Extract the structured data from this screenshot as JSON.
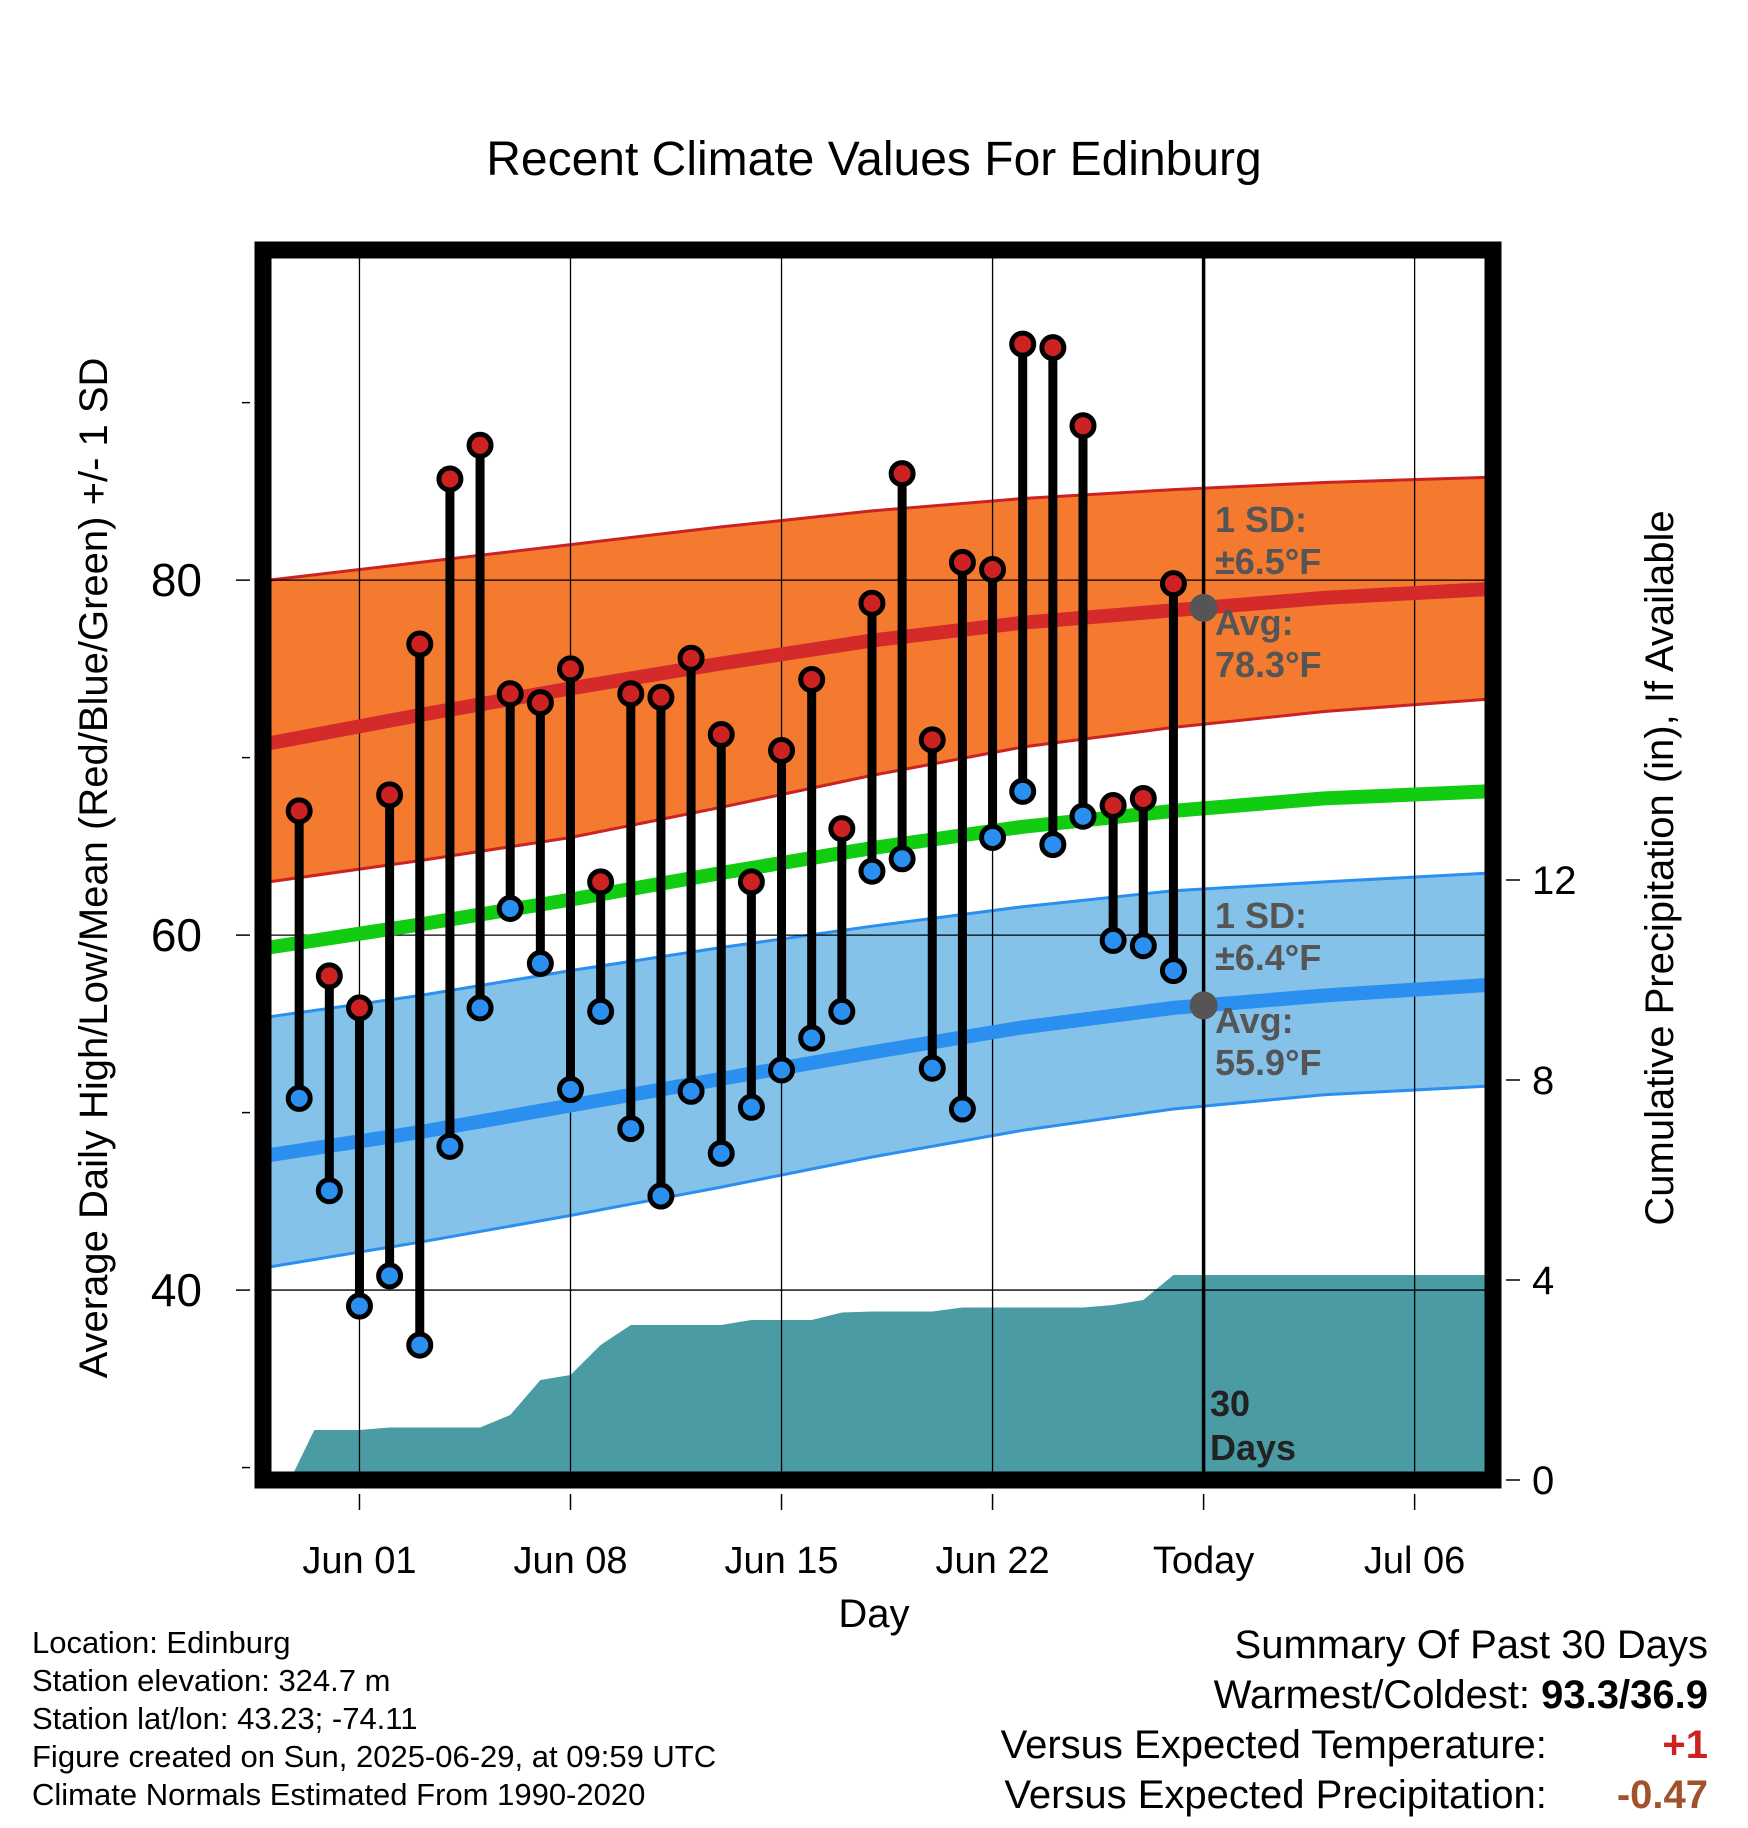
{
  "title": "Recent Climate Values For Edinburg",
  "xlabel": "Day",
  "ylabel_left": "Average Daily High/Low/Mean (Red/Blue/Green) +/- 1 SD",
  "ylabel_right": "Cumulative Precipitation (in), If Available",
  "annotations": {
    "high_sd_line1": "1 SD:",
    "high_sd_line2": "±6.5°F",
    "high_avg_line1": "Avg:",
    "high_avg_line2": "78.3°F",
    "low_sd_line1": "1 SD:",
    "low_sd_line2": "±6.4°F",
    "low_avg_line1": "Avg:",
    "low_avg_line2": "55.9°F",
    "window_line1": "30",
    "window_line2": "Days"
  },
  "info_left": [
    "Location: Edinburg",
    "Station elevation: 324.7 m",
    "Station lat/lon: 43.23; -74.11",
    "Figure created on Sun, 2025-06-29, at 09:59 UTC",
    "Climate Normals Estimated From 1990-2020"
  ],
  "summary": {
    "heading": "Summary Of Past 30 Days",
    "warm_cold_label": "Warmest/Coldest:",
    "warm_cold_value": "93.3/36.9",
    "temp_label": "Versus Expected Temperature:",
    "temp_value": "+1",
    "precip_label": "Versus Expected Precipitation:",
    "precip_value": "-0.47"
  },
  "colors": {
    "high_marker": "#cc2222",
    "low_marker": "#2a8fef",
    "high_band": "#f47a30",
    "low_band": "#84c2ea",
    "mean_line": "#11cc11",
    "precip_fill": "#4a9ba4",
    "annotation_text": "#555555",
    "temp_value": "#cc2222",
    "precip_value": "#a0522d"
  },
  "chart_data": {
    "type": "line",
    "x_ticks": [
      {
        "day": 2,
        "label": "Jun 01"
      },
      {
        "day": 9,
        "label": "Jun 08"
      },
      {
        "day": 16,
        "label": "Jun 15"
      },
      {
        "day": 23,
        "label": "Jun 22"
      },
      {
        "day": 30,
        "label": "Today"
      },
      {
        "day": 37,
        "label": "Jul 06"
      }
    ],
    "xlim": [
      -1.2,
      39.6
    ],
    "today_day": 30,
    "y_left_ticks": [
      40,
      60,
      80
    ],
    "ylim_left": [
      29.3,
      98.6
    ],
    "y_right_ticks": [
      0,
      4,
      8,
      12
    ],
    "ylim_right": [
      0,
      24.6
    ],
    "normals": {
      "days": [
        -1,
        4,
        9,
        14,
        19,
        24,
        29,
        34,
        39.5
      ],
      "high_mean": [
        70.8,
        72.4,
        73.9,
        75.3,
        76.6,
        77.6,
        78.3,
        79.0,
        79.5
      ],
      "high_upper": [
        80.0,
        81.0,
        82.0,
        83.0,
        83.9,
        84.6,
        85.1,
        85.5,
        85.8
      ],
      "high_lower": [
        63.0,
        64.2,
        65.5,
        67.2,
        69.0,
        70.6,
        71.7,
        72.6,
        73.3
      ],
      "mean": [
        59.3,
        60.6,
        62.0,
        63.5,
        64.9,
        66.1,
        67.0,
        67.7,
        68.1
      ],
      "low_mean": [
        47.6,
        48.9,
        50.4,
        51.9,
        53.4,
        54.8,
        55.9,
        56.6,
        57.2
      ],
      "low_upper": [
        55.4,
        56.6,
        58.0,
        59.3,
        60.5,
        61.6,
        62.5,
        63.0,
        63.5
      ],
      "low_lower": [
        41.3,
        42.7,
        44.2,
        45.8,
        47.5,
        49.0,
        50.2,
        51.0,
        51.5
      ]
    },
    "series": [
      {
        "name": "High",
        "days": [
          0,
          1,
          2,
          3,
          4,
          5,
          6,
          7,
          8,
          9,
          10,
          11,
          12,
          13,
          14,
          15,
          16,
          17,
          18,
          19,
          20,
          21,
          22,
          23,
          24,
          25,
          26,
          27,
          28,
          29
        ],
        "values": [
          67.0,
          57.7,
          55.9,
          67.9,
          76.4,
          85.7,
          87.6,
          73.6,
          73.1,
          75.0,
          63.0,
          73.6,
          73.4,
          75.6,
          71.3,
          63.0,
          70.4,
          74.4,
          66.0,
          78.7,
          86.0,
          71.0,
          81.0,
          80.6,
          93.3,
          93.1,
          88.7,
          67.3,
          67.7,
          79.8
        ]
      },
      {
        "name": "Low",
        "days": [
          0,
          1,
          2,
          3,
          4,
          5,
          6,
          7,
          8,
          9,
          10,
          11,
          12,
          13,
          14,
          15,
          16,
          17,
          18,
          19,
          20,
          21,
          22,
          23,
          24,
          25,
          26,
          27,
          28,
          29
        ],
        "values": [
          50.8,
          45.6,
          39.1,
          40.8,
          36.9,
          48.1,
          55.9,
          61.5,
          58.4,
          51.3,
          55.7,
          49.1,
          45.3,
          51.2,
          47.7,
          50.3,
          52.4,
          54.2,
          55.7,
          63.6,
          64.3,
          52.5,
          50.2,
          65.5,
          68.1,
          65.1,
          66.7,
          59.7,
          59.4,
          58.0
        ]
      },
      {
        "name": "Cumulative Precipitation",
        "axis": "right",
        "days": [
          -0.3,
          0.5,
          1,
          2,
          3,
          4,
          5,
          6,
          7,
          8,
          9,
          10,
          11,
          12,
          13,
          14,
          15,
          16,
          17,
          18,
          19,
          20,
          21,
          22,
          23,
          24,
          25,
          26,
          27,
          28,
          29,
          30,
          39.6
        ],
        "values": [
          0,
          1.0,
          1.0,
          1.0,
          1.05,
          1.05,
          1.05,
          1.05,
          1.3,
          2.0,
          2.1,
          2.7,
          3.1,
          3.1,
          3.1,
          3.1,
          3.2,
          3.2,
          3.2,
          3.35,
          3.37,
          3.37,
          3.37,
          3.45,
          3.45,
          3.45,
          3.45,
          3.45,
          3.5,
          3.6,
          4.1,
          4.1,
          4.1
        ]
      }
    ]
  }
}
